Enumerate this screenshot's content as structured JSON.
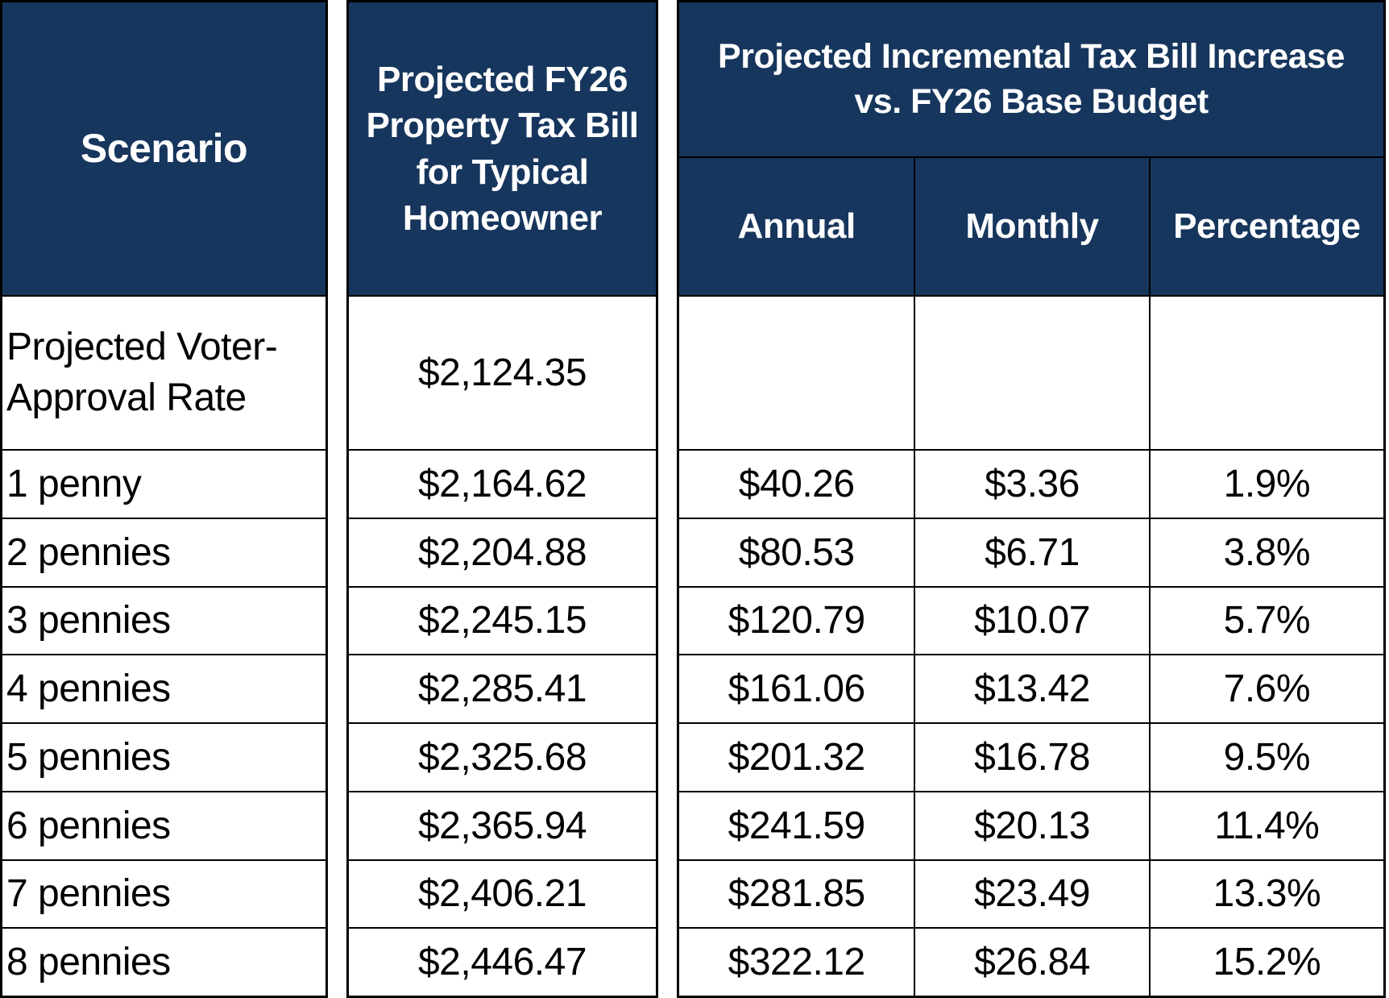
{
  "colors": {
    "header_bg": "#17365D",
    "header_text": "#FFFFFF",
    "body_text": "#000000",
    "border": "#000000",
    "background": "#FFFFFF"
  },
  "chart_data": {
    "type": "table",
    "headers": {
      "scenario": "Scenario",
      "tax_bill": "Projected FY26\nProperty Tax Bill\nfor Typical\nHomeowner",
      "increase_group": "Projected Incremental Tax Bill Increase\nvs. FY26 Base Budget",
      "annual": "Annual",
      "monthly": "Monthly",
      "percentage": "Percentage"
    },
    "rows": [
      {
        "scenario": "Projected Voter-\nApproval Rate",
        "tax_bill": "$2,124.35",
        "annual": "",
        "monthly": "",
        "percentage": ""
      },
      {
        "scenario": "1 penny",
        "tax_bill": "$2,164.62",
        "annual": "$40.26",
        "monthly": "$3.36",
        "percentage": "1.9%"
      },
      {
        "scenario": "2 pennies",
        "tax_bill": "$2,204.88",
        "annual": "$80.53",
        "monthly": "$6.71",
        "percentage": "3.8%"
      },
      {
        "scenario": "3 pennies",
        "tax_bill": "$2,245.15",
        "annual": "$120.79",
        "monthly": "$10.07",
        "percentage": "5.7%"
      },
      {
        "scenario": "4 pennies",
        "tax_bill": "$2,285.41",
        "annual": "$161.06",
        "monthly": "$13.42",
        "percentage": "7.6%"
      },
      {
        "scenario": "5 pennies",
        "tax_bill": "$2,325.68",
        "annual": "$201.32",
        "monthly": "$16.78",
        "percentage": "9.5%"
      },
      {
        "scenario": "6 pennies",
        "tax_bill": "$2,365.94",
        "annual": "$241.59",
        "monthly": "$20.13",
        "percentage": "11.4%"
      },
      {
        "scenario": "7 pennies",
        "tax_bill": "$2,406.21",
        "annual": "$281.85",
        "monthly": "$23.49",
        "percentage": "13.3%"
      },
      {
        "scenario": "8 pennies",
        "tax_bill": "$2,446.47",
        "annual": "$322.12",
        "monthly": "$26.84",
        "percentage": "15.2%"
      }
    ]
  }
}
